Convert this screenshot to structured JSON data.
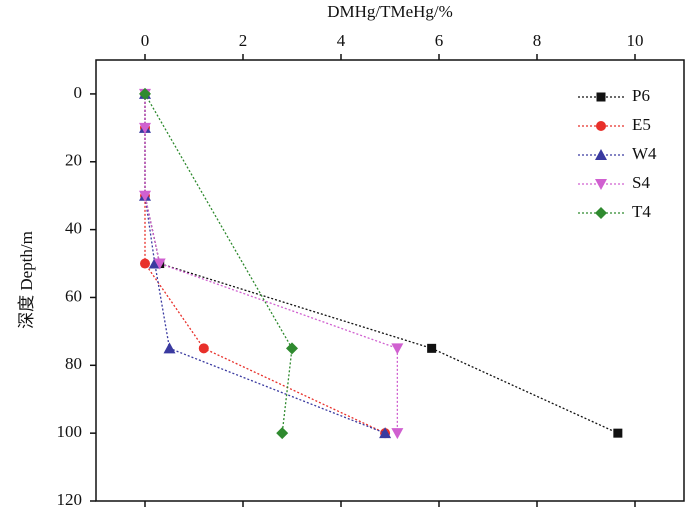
{
  "chart_data": {
    "type": "line",
    "x_label": "DMHg/TMeHg/%",
    "y_label": "深度 Depth/m",
    "xlim": [
      -1,
      11
    ],
    "xticks": [
      0,
      2,
      4,
      6,
      8,
      10
    ],
    "ylim": [
      -10,
      120
    ],
    "yticks": [
      0,
      20,
      40,
      60,
      80,
      100,
      120
    ],
    "y_inverted": true,
    "legend": "upper right",
    "series": [
      {
        "name": "P6",
        "color": "#111111",
        "marker": "square",
        "depth": [
          0,
          10,
          30,
          50,
          75,
          100
        ],
        "values": [
          0,
          0,
          0,
          0.3,
          5.85,
          9.65
        ]
      },
      {
        "name": "E5",
        "color": "#e8302a",
        "marker": "circle",
        "depth": [
          0,
          10,
          30,
          50,
          75,
          100
        ],
        "values": [
          0,
          0,
          0,
          0,
          1.2,
          4.9
        ]
      },
      {
        "name": "W4",
        "color": "#3a3aa0",
        "marker": "triangle-up",
        "depth": [
          0,
          10,
          30,
          50,
          75,
          100
        ],
        "values": [
          0,
          0,
          0,
          0.2,
          0.5,
          4.9
        ]
      },
      {
        "name": "S4",
        "color": "#d060d0",
        "marker": "triangle-down",
        "depth": [
          0,
          10,
          30,
          50,
          75,
          100
        ],
        "values": [
          0,
          0,
          0,
          0.3,
          5.15,
          5.15
        ]
      },
      {
        "name": "T4",
        "color": "#2f8a2f",
        "marker": "diamond",
        "depth": [
          0,
          75,
          100
        ],
        "values": [
          0,
          3.0,
          2.8
        ]
      }
    ]
  }
}
